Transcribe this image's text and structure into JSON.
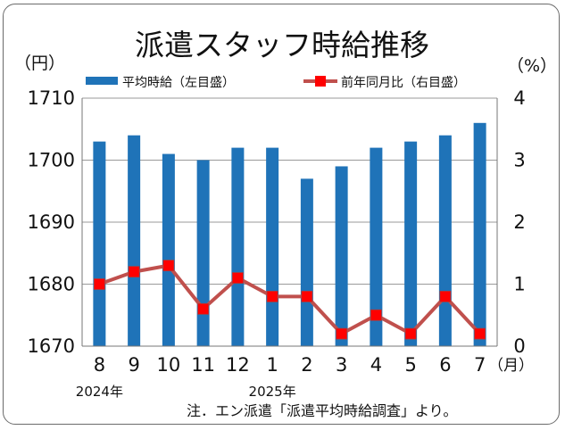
{
  "chart_data": {
    "type": "bar",
    "title": "派遣スタッフ時給推移",
    "ylabel_left": "（円）",
    "ylabel_right": "（%）",
    "x_unit": "（月）",
    "categories": [
      "8",
      "9",
      "10",
      "11",
      "12",
      "1",
      "2",
      "3",
      "4",
      "5",
      "6",
      "7"
    ],
    "year_labels": [
      {
        "text": "2024年",
        "category_index": 0
      },
      {
        "text": "2025年",
        "category_index": 5
      }
    ],
    "series": [
      {
        "name": "平均時給（左目盛）",
        "type": "bar",
        "axis": "left",
        "color": "#1f73b8",
        "values": [
          1703,
          1704,
          1701,
          1700,
          1702,
          1702,
          1697,
          1699,
          1702,
          1703,
          1704,
          1706
        ]
      },
      {
        "name": "前年同月比（右目盛）",
        "type": "line",
        "axis": "right",
        "color": "#c0504d",
        "marker_color": "#ff0000",
        "values": [
          1.0,
          1.2,
          1.3,
          0.6,
          1.1,
          0.8,
          0.8,
          0.2,
          0.5,
          0.2,
          0.8,
          0.2
        ]
      }
    ],
    "y_left": {
      "min": 1670,
      "max": 1710,
      "ticks": [
        1670,
        1680,
        1690,
        1700,
        1710
      ]
    },
    "y_right": {
      "min": 0,
      "max": 4,
      "ticks": [
        0,
        1,
        2,
        3,
        4
      ]
    },
    "grid": true,
    "legend_position": "top"
  },
  "note": "注．エン派遣「派遣平均時給調査」より。"
}
